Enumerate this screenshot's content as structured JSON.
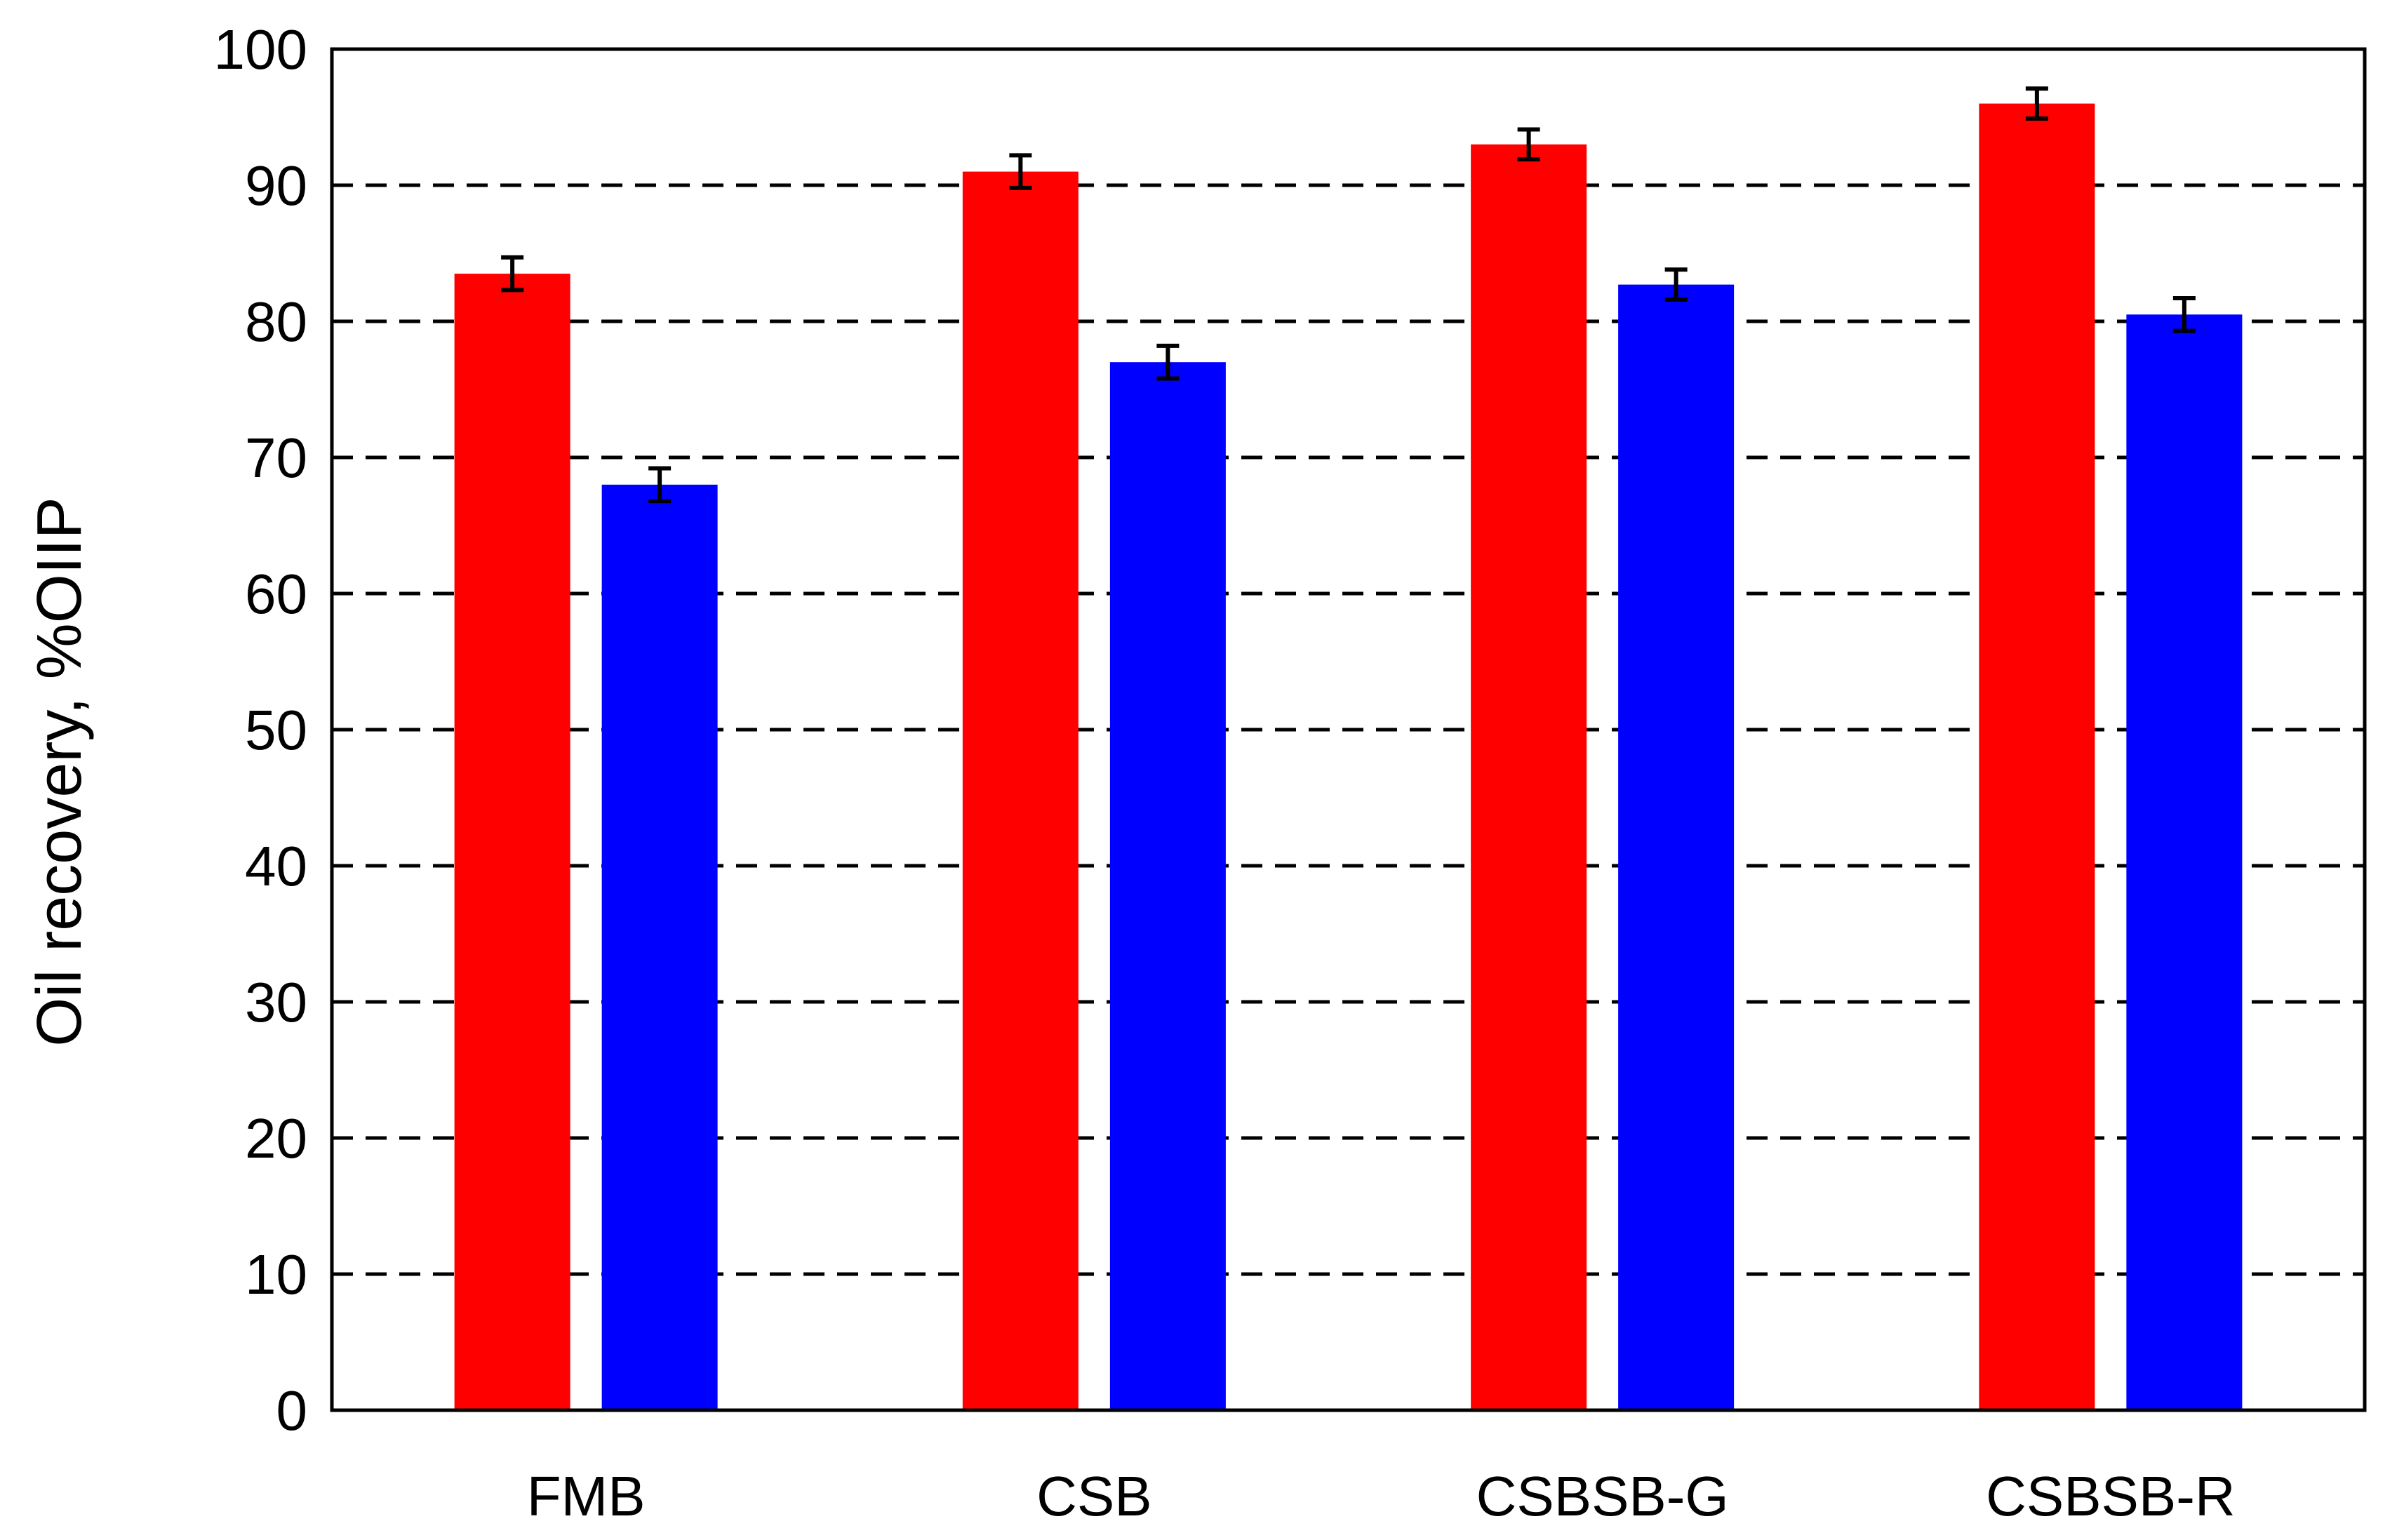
{
  "chart_data": {
    "type": "bar",
    "title": "",
    "xlabel": "",
    "ylabel": "Oil recovery,  %OIIP",
    "categories": [
      "FMB",
      "CSB",
      "CSBSB-G",
      "CSBSB-R"
    ],
    "series": [
      {
        "color": "#ff0000",
        "values": [
          83.5,
          91.0,
          93.0,
          96.0
        ],
        "error": [
          1.2,
          1.2,
          1.1,
          1.1
        ]
      },
      {
        "color": "#0000ff",
        "values": [
          68.0,
          77.0,
          82.7,
          80.5
        ],
        "error": [
          1.2,
          1.2,
          1.1,
          1.2
        ]
      }
    ],
    "ylim": [
      0,
      100
    ],
    "yticks": [
      0,
      10,
      20,
      30,
      40,
      50,
      60,
      70,
      80,
      90,
      100
    ],
    "grid": {
      "y": true,
      "style": "dashed"
    },
    "legend": "none"
  }
}
